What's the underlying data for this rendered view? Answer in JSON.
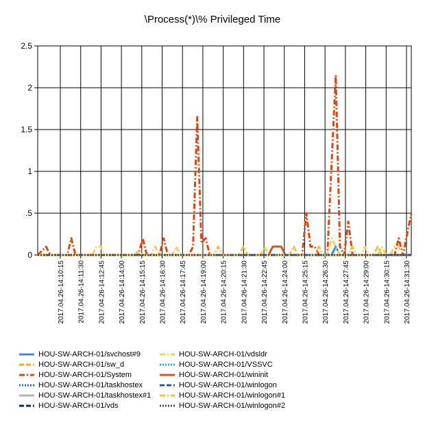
{
  "chart_data": {
    "type": "line",
    "title": "\\Process(*)\\% Privileged Time",
    "xlabel": "",
    "ylabel": "",
    "ylim": [
      0,
      2.5
    ],
    "y_ticks": [
      "0",
      ".5",
      "1",
      "1.5",
      "2",
      "2.5"
    ],
    "grid": true,
    "legend_position": "bottom",
    "x_tick_labels": [
      "2017.04.26-14:10:15",
      "2017.04.26-14:11:30",
      "2017.04.26-14:12:45",
      "2017.04.26-14:14:00",
      "2017.04.26-14:15:15",
      "2017.04.26-14:16:30",
      "2017.04.26-14:17:45",
      "2017.04.26-14:19:00",
      "2017.04.26-14:20:15",
      "2017.04.26-14:21:30",
      "2017.04.26-14:22:45",
      "2017.04.26-14:24:00",
      "2017.04.26-14:25:15",
      "2017.04.26-14:26:30",
      "2017.04.26-14:27:45",
      "2017.04.26-14:29:00",
      "2017.04.26-14:30:15",
      "2017.04.26-14:31:30"
    ],
    "x_sample_count": 90,
    "series": [
      {
        "name": "HOU-SW-ARCH-01/svchost#9",
        "color": "#3c8ae0",
        "dash": "solid",
        "points": [
          [
            0,
            0
          ],
          [
            70,
            0
          ],
          [
            71,
            0.1
          ],
          [
            72,
            0
          ],
          [
            89,
            0
          ]
        ]
      },
      {
        "name": "HOU-SW-ARCH-01/sw_d",
        "color": "#f2a830",
        "dash": "dash",
        "points": [
          [
            0,
            0
          ],
          [
            89,
            0
          ]
        ]
      },
      {
        "name": "HOU-SW-ARCH-01/System",
        "color": "#e0450d",
        "dash": "dashdot",
        "points": [
          [
            0,
            0
          ],
          [
            2,
            0.1
          ],
          [
            3,
            0
          ],
          [
            7,
            0
          ],
          [
            8,
            0.2
          ],
          [
            9,
            0
          ],
          [
            24,
            0
          ],
          [
            25,
            0.2
          ],
          [
            26,
            0
          ],
          [
            29,
            0
          ],
          [
            30,
            0.2
          ],
          [
            31,
            0
          ],
          [
            36,
            0
          ],
          [
            37,
            0.1
          ],
          [
            38,
            1.65
          ],
          [
            39,
            0.15
          ],
          [
            40,
            0.2
          ],
          [
            41,
            0
          ],
          [
            63,
            0
          ],
          [
            64,
            0.5
          ],
          [
            65,
            0.1
          ],
          [
            66,
            0.1
          ],
          [
            67,
            0
          ],
          [
            69,
            0
          ],
          [
            71,
            2.15
          ],
          [
            72,
            0.1
          ],
          [
            73,
            0
          ],
          [
            74,
            0.4
          ],
          [
            75,
            0
          ],
          [
            85,
            0
          ],
          [
            86,
            0.2
          ],
          [
            87,
            0
          ],
          [
            89,
            0.5
          ]
        ]
      },
      {
        "name": "HOU-SW-ARCH-01/taskhostex",
        "color": "#1a6ab2",
        "dash": "dot",
        "points": [
          [
            0,
            0
          ],
          [
            89,
            0
          ]
        ]
      },
      {
        "name": "HOU-SW-ARCH-01/taskhostex#1",
        "color": "#b4b4b4",
        "dash": "solid",
        "points": [
          [
            0,
            0
          ],
          [
            89,
            0
          ]
        ]
      },
      {
        "name": "HOU-SW-ARCH-01/vds",
        "color": "#0b2a4a",
        "dash": "dash",
        "points": [
          [
            0,
            0
          ],
          [
            89,
            0
          ]
        ]
      },
      {
        "name": "HOU-SW-ARCH-01/vdsldr",
        "color": "#f5d060",
        "dash": "dashdot",
        "points": [
          [
            0,
            0
          ],
          [
            13,
            0
          ],
          [
            14,
            0.1
          ],
          [
            15,
            0.1
          ],
          [
            16,
            0
          ],
          [
            27,
            0
          ],
          [
            28,
            0.1
          ],
          [
            29,
            0
          ],
          [
            32,
            0
          ],
          [
            33,
            0.1
          ],
          [
            34,
            0
          ],
          [
            53,
            0
          ],
          [
            54,
            0.1
          ],
          [
            55,
            0
          ],
          [
            69,
            0
          ],
          [
            70,
            0.2
          ],
          [
            71,
            0.1
          ],
          [
            72,
            0
          ],
          [
            77,
            0
          ],
          [
            78,
            0.1
          ],
          [
            79,
            0
          ],
          [
            81,
            0
          ],
          [
            82,
            0.1
          ],
          [
            83,
            0
          ],
          [
            84,
            0
          ],
          [
            85,
            0.1
          ],
          [
            86,
            0.1
          ],
          [
            87,
            0
          ]
        ]
      },
      {
        "name": "HOU-SW-ARCH-01/VSSVC",
        "color": "#1aa6c8",
        "dash": "dot",
        "points": [
          [
            0,
            0
          ],
          [
            89,
            0
          ]
        ]
      },
      {
        "name": "HOU-SW-ARCH-01/wininit",
        "color": "#c8582a",
        "dash": "solid",
        "points": [
          [
            0,
            0
          ],
          [
            55,
            0
          ],
          [
            56,
            0.1
          ],
          [
            57,
            0.1
          ],
          [
            58,
            0.1
          ],
          [
            59,
            0
          ],
          [
            89,
            0
          ]
        ]
      },
      {
        "name": "HOU-SW-ARCH-01/winlogon",
        "color": "#1e5aa8",
        "dash": "dash",
        "points": [
          [
            0,
            0
          ],
          [
            89,
            0
          ]
        ]
      },
      {
        "name": "HOU-SW-ARCH-01/winlogon#1",
        "color": "#f0c040",
        "dash": "dashdot",
        "points": [
          [
            0,
            0
          ],
          [
            23,
            0
          ],
          [
            24,
            0.05
          ],
          [
            25,
            0
          ],
          [
            42,
            0
          ],
          [
            43,
            0.1
          ],
          [
            44,
            0
          ],
          [
            48,
            0
          ],
          [
            49,
            0.1
          ],
          [
            50,
            0
          ],
          [
            60,
            0
          ],
          [
            61,
            0.1
          ],
          [
            62,
            0
          ],
          [
            66,
            0
          ],
          [
            67,
            0.1
          ],
          [
            68,
            0
          ],
          [
            74,
            0
          ],
          [
            75,
            0.1
          ],
          [
            76,
            0
          ],
          [
            80,
            0
          ],
          [
            81,
            0.1
          ],
          [
            82,
            0
          ]
        ]
      },
      {
        "name": "HOU-SW-ARCH-01/winlogon#2",
        "color": "#4a4a4a",
        "dash": "dot",
        "points": [
          [
            0,
            0
          ],
          [
            89,
            0
          ]
        ]
      }
    ]
  }
}
